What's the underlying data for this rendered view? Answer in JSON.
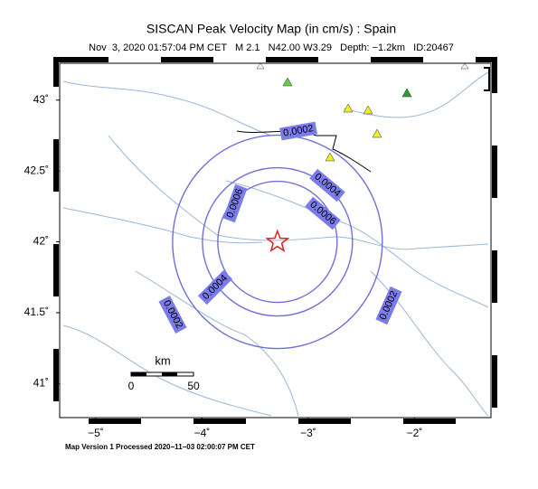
{
  "header": {
    "title": "SISCAN Peak Velocity Map (in cm/s) : Spain",
    "subtitle": "Nov  3, 2020 01:57:04 PM CET   M 2.1   N42.00 W3.29   Depth: −1.2km   ID:20467"
  },
  "map": {
    "xlim": [
      -5.34,
      -1.28
    ],
    "ylim": [
      40.76,
      43.26
    ],
    "xticks": [
      {
        "value": -5,
        "label": "−5˚"
      },
      {
        "value": -4,
        "label": "−4˚"
      },
      {
        "value": -3,
        "label": "−3˚"
      },
      {
        "value": -2,
        "label": "−2˚"
      }
    ],
    "yticks": [
      {
        "value": 41,
        "label": "41˚"
      },
      {
        "value": 41.5,
        "label": "41.5˚"
      },
      {
        "value": 42,
        "label": "42˚"
      },
      {
        "value": 42.5,
        "label": "42.5˚"
      },
      {
        "value": 43,
        "label": "43˚"
      }
    ],
    "epicenter": {
      "lon": -3.29,
      "lat": 42.0
    },
    "contours": [
      {
        "label": "0.0002"
      },
      {
        "label": "0.0004"
      },
      {
        "label": "0.0006"
      }
    ]
  },
  "scale_bar": {
    "title": "km",
    "labels": [
      "0",
      "50"
    ]
  },
  "footer": "Map Version 1 Processed 2020−11−03 02:00:07 PM CET"
}
